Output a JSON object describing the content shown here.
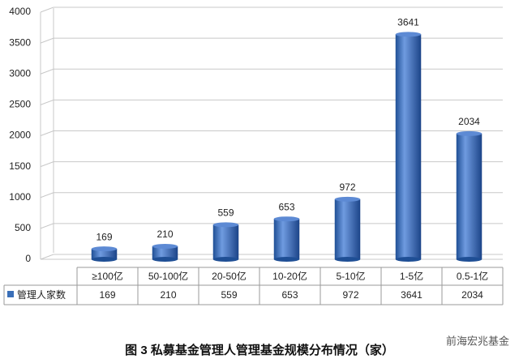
{
  "chart_data": {
    "type": "bar",
    "title": "图 3  私募基金管理人管理基金规模分布情况（家）",
    "watermark": "前海宏兆基金",
    "categories": [
      "≥100亿",
      "50-100亿",
      "20-50亿",
      "10-20亿",
      "5-10亿",
      "1-5亿",
      "0.5-1亿"
    ],
    "series": [
      {
        "name": "管理人家数",
        "color": "#3a6fb8",
        "values": [
          169,
          210,
          559,
          653,
          972,
          3641,
          2034
        ]
      }
    ],
    "ylim": [
      0,
      4000
    ],
    "yticks": [
      0,
      500,
      1000,
      1500,
      2000,
      2500,
      3000,
      3500,
      4000
    ],
    "grid": true
  }
}
